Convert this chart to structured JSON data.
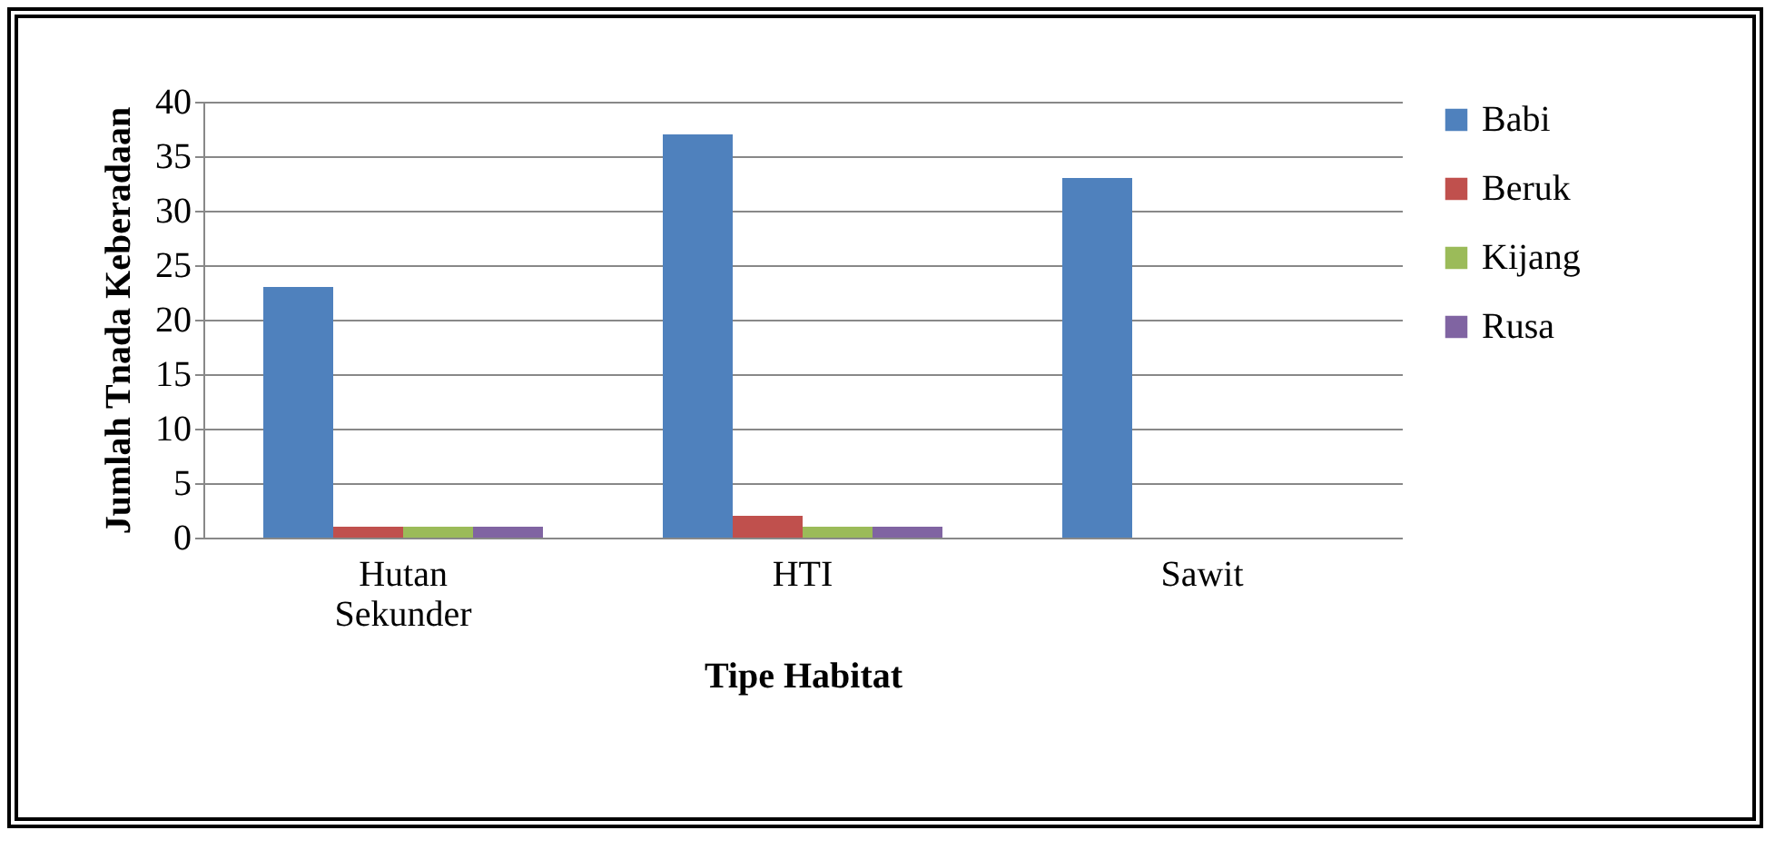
{
  "chart_data": {
    "type": "bar",
    "xlabel": "Tipe Habitat",
    "ylabel": "Jumlah Tnada Keberadaan",
    "categories": [
      "Hutan Sekunder",
      "HTI",
      "Sawit",
      null
    ],
    "series": [
      {
        "name": "Babi",
        "color": "#4f81bd",
        "values": [
          23,
          37,
          33,
          null
        ]
      },
      {
        "name": "Beruk",
        "color": "#c0504d",
        "values": [
          1,
          2,
          0,
          null
        ]
      },
      {
        "name": "Kijang",
        "color": "#9bbb59",
        "values": [
          1,
          1,
          0,
          null
        ]
      },
      {
        "name": "Rusa",
        "color": "#8064a2",
        "values": [
          1,
          1,
          0,
          null
        ]
      }
    ],
    "ylim": [
      0,
      40
    ],
    "yticks": [
      0,
      5,
      10,
      15,
      20,
      25,
      30,
      35,
      40
    ],
    "grid": "y",
    "legend": "right"
  }
}
